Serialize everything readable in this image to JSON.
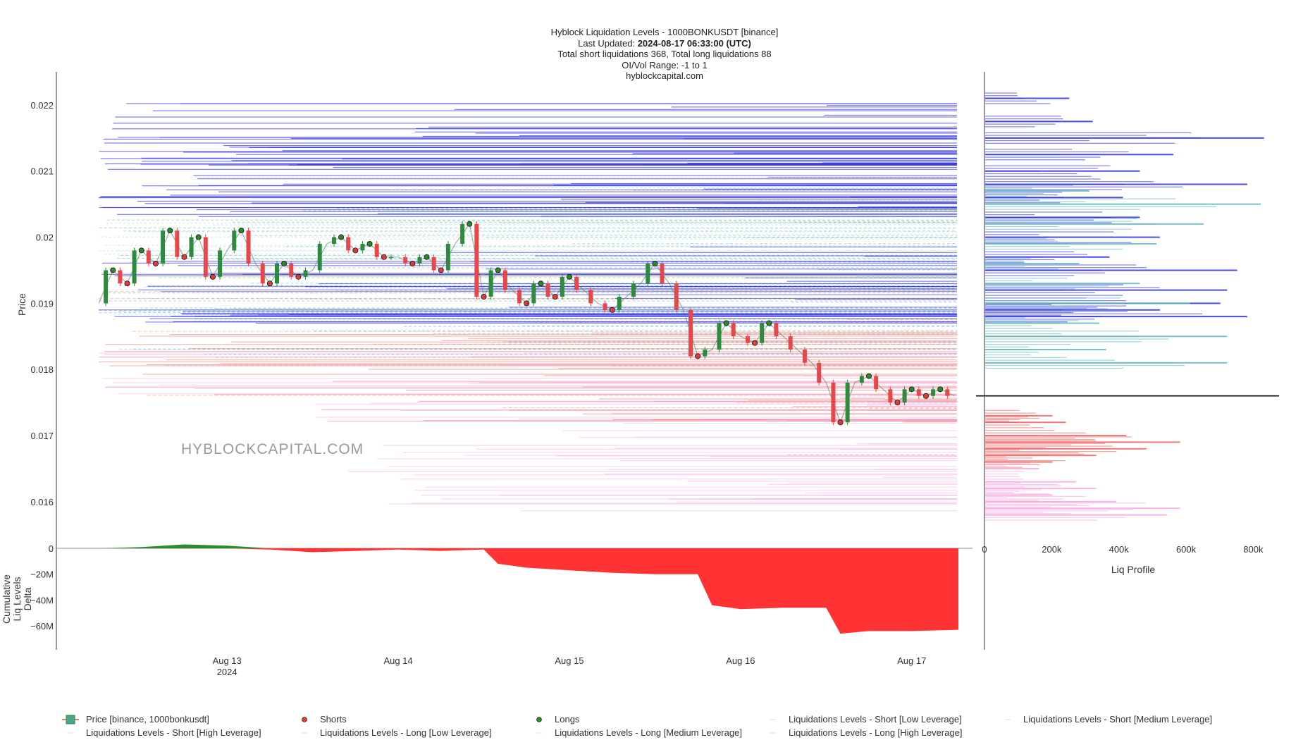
{
  "header": {
    "line1": "Hyblock Liquidation Levels - 1000BONKUSDT [binance]",
    "line2_prefix": "Last Updated: ",
    "line2_value": "2024-08-17 06:33:00 (UTC)",
    "line3": "Total short liquidations 368, Total long liquidations 88",
    "line4": "OI/Vol Range: -1 to 1",
    "line5": "hyblockcapital.com"
  },
  "watermark": "HYBLOCKCAPITAL.COM",
  "colors": {
    "price_up": "#2e8b3e",
    "price_down": "#e8474a",
    "shorts_marker": "#e03b3b",
    "longs_marker": "#2a8a2a",
    "short_low": "#a8d8d8",
    "short_medium": "#5fb8b8",
    "short_high": "#2d2de0",
    "long_low": "#f6a8e0",
    "long_medium": "#ff8c5a",
    "long_high": "#f06060",
    "delta_positive": "#2e8b2e",
    "delta_negative": "#ff3333"
  },
  "chart_data": [
    {
      "type": "line",
      "name": "price-panel",
      "ylabel": "Price",
      "ylim": [
        0.0157,
        0.0225
      ],
      "y_ticks": [
        {
          "value": 0.022,
          "label": "0.022"
        },
        {
          "value": 0.021,
          "label": "0.021"
        },
        {
          "value": 0.02,
          "label": "0.02"
        },
        {
          "value": 0.019,
          "label": "0.019"
        },
        {
          "value": 0.018,
          "label": "0.018"
        },
        {
          "value": 0.017,
          "label": "0.017"
        },
        {
          "value": 0.016,
          "label": "0.016"
        }
      ],
      "xlim": [
        "2024-08-12 06:00",
        "2024-08-17 06:33"
      ],
      "x_ticks": [
        {
          "value": "2024-08-13 00:00",
          "label": "Aug 13",
          "sublabel": "2024"
        },
        {
          "value": "2024-08-14 00:00",
          "label": "Aug 14",
          "sublabel": ""
        },
        {
          "value": "2024-08-15 00:00",
          "label": "Aug 15",
          "sublabel": ""
        },
        {
          "value": "2024-08-16 00:00",
          "label": "Aug 16",
          "sublabel": ""
        },
        {
          "value": "2024-08-17 00:00",
          "label": "Aug 17",
          "sublabel": ""
        }
      ],
      "current_price": 0.0176,
      "series": [
        {
          "name": "Price [binance, 1000bonkusdt]",
          "x": [
            "2024-08-12 06:00",
            "2024-08-12 08:00",
            "2024-08-12 10:00",
            "2024-08-12 12:00",
            "2024-08-12 14:00",
            "2024-08-12 16:00",
            "2024-08-12 18:00",
            "2024-08-12 20:00",
            "2024-08-12 22:00",
            "2024-08-13 00:00",
            "2024-08-13 02:00",
            "2024-08-13 04:00",
            "2024-08-13 06:00",
            "2024-08-13 08:00",
            "2024-08-13 10:00",
            "2024-08-13 12:00",
            "2024-08-13 14:00",
            "2024-08-13 16:00",
            "2024-08-13 18:00",
            "2024-08-13 20:00",
            "2024-08-13 22:00",
            "2024-08-14 00:00",
            "2024-08-14 02:00",
            "2024-08-14 04:00",
            "2024-08-14 06:00",
            "2024-08-14 08:00",
            "2024-08-14 10:00",
            "2024-08-14 12:00",
            "2024-08-14 14:00",
            "2024-08-14 16:00",
            "2024-08-14 18:00",
            "2024-08-14 20:00",
            "2024-08-14 22:00",
            "2024-08-15 00:00",
            "2024-08-15 02:00",
            "2024-08-15 04:00",
            "2024-08-15 06:00",
            "2024-08-15 08:00",
            "2024-08-15 10:00",
            "2024-08-15 12:00",
            "2024-08-15 14:00",
            "2024-08-15 16:00",
            "2024-08-15 18:00",
            "2024-08-15 20:00",
            "2024-08-15 22:00",
            "2024-08-16 00:00",
            "2024-08-16 02:00",
            "2024-08-16 04:00",
            "2024-08-16 06:00",
            "2024-08-16 08:00",
            "2024-08-16 10:00",
            "2024-08-16 12:00",
            "2024-08-16 14:00",
            "2024-08-16 16:00",
            "2024-08-16 18:00",
            "2024-08-16 20:00",
            "2024-08-16 22:00",
            "2024-08-17 00:00",
            "2024-08-17 02:00",
            "2024-08-17 04:00",
            "2024-08-17 06:00"
          ],
          "values": [
            0.019,
            0.0195,
            0.0193,
            0.0198,
            0.0196,
            0.0201,
            0.0197,
            0.02,
            0.0194,
            0.0198,
            0.0201,
            0.0196,
            0.0193,
            0.0196,
            0.0194,
            0.0195,
            0.0199,
            0.02,
            0.0198,
            0.0199,
            0.0197,
            0.0197,
            0.0196,
            0.0197,
            0.0195,
            0.0199,
            0.0202,
            0.0191,
            0.0195,
            0.0192,
            0.019,
            0.0193,
            0.0191,
            0.0194,
            0.0192,
            0.019,
            0.0189,
            0.0191,
            0.0193,
            0.0196,
            0.0193,
            0.0189,
            0.0182,
            0.0183,
            0.0187,
            0.0185,
            0.0184,
            0.0187,
            0.0185,
            0.0183,
            0.0181,
            0.0178,
            0.0172,
            0.0178,
            0.0179,
            0.0177,
            0.0175,
            0.0177,
            0.0176,
            0.0177,
            0.0176
          ]
        }
      ]
    },
    {
      "type": "bar",
      "name": "liq-profile",
      "xlabel": "Liq Profile",
      "xlim": [
        0,
        860000
      ],
      "x_ticks": [
        {
          "value": 0,
          "label": "0"
        },
        {
          "value": 200000,
          "label": "200k"
        },
        {
          "value": 400000,
          "label": "400k"
        },
        {
          "value": 600000,
          "label": "600k"
        },
        {
          "value": 800000,
          "label": "800k"
        }
      ],
      "series": [
        {
          "name": "Liquidations Levels - Short [High Leverage]",
          "price": [
            0.0221,
            0.02175,
            0.0215,
            0.02125,
            0.021,
            0.0208,
            0.0206,
            0.0203,
            0.02,
            0.0197,
            0.0195,
            0.0192,
            0.019,
            0.0189,
            0.0188
          ],
          "values": [
            250000,
            320000,
            830000,
            560000,
            460000,
            780000,
            410000,
            460000,
            520000,
            370000,
            750000,
            720000,
            700000,
            520000,
            780000
          ]
        },
        {
          "name": "Liquidations Levels - Short [Medium Leverage]",
          "price": [
            0.0207,
            0.0205,
            0.0202,
            0.0199,
            0.0196,
            0.0193,
            0.019,
            0.0187,
            0.0185,
            0.0183,
            0.0181
          ],
          "values": [
            310000,
            820000,
            650000,
            510000,
            280000,
            460000,
            610000,
            340000,
            720000,
            360000,
            720000
          ]
        },
        {
          "name": "Liquidations Levels - Long [High Leverage]",
          "price": [
            0.0173,
            0.0172,
            0.017,
            0.0169,
            0.0168,
            0.0167,
            0.0166
          ],
          "values": [
            200000,
            240000,
            420000,
            580000,
            480000,
            330000,
            200000
          ]
        },
        {
          "name": "Liquidations Levels - Long [Low Leverage]",
          "price": [
            0.0165,
            0.0163,
            0.0162,
            0.0161,
            0.016,
            0.0159,
            0.0158
          ],
          "values": [
            160000,
            270000,
            330000,
            200000,
            390000,
            580000,
            540000
          ]
        }
      ]
    },
    {
      "type": "area",
      "name": "cumulative-liq-delta",
      "ylabel": "Cumulative Liq Levels Delta",
      "ylim": [
        -72000000,
        4000000
      ],
      "y_ticks": [
        {
          "value": 0,
          "label": "0"
        },
        {
          "value": -20000000,
          "label": "−20M"
        },
        {
          "value": -40000000,
          "label": "−40M"
        },
        {
          "value": -60000000,
          "label": "−60M"
        }
      ],
      "series": [
        {
          "name": "Cumulative Liq Levels Delta",
          "x": [
            "2024-08-12 06:00",
            "2024-08-12 12:00",
            "2024-08-12 18:00",
            "2024-08-13 00:00",
            "2024-08-13 06:00",
            "2024-08-13 12:00",
            "2024-08-13 18:00",
            "2024-08-14 00:00",
            "2024-08-14 06:00",
            "2024-08-14 12:00",
            "2024-08-14 14:00",
            "2024-08-14 18:00",
            "2024-08-15 00:00",
            "2024-08-15 06:00",
            "2024-08-15 12:00",
            "2024-08-15 18:00",
            "2024-08-15 20:00",
            "2024-08-16 00:00",
            "2024-08-16 06:00",
            "2024-08-16 12:00",
            "2024-08-16 14:00",
            "2024-08-16 18:00",
            "2024-08-17 00:00",
            "2024-08-17 06:33"
          ],
          "values": [
            0,
            1000000,
            3000000,
            2000000,
            -1000000,
            -3000000,
            -2000000,
            -1000000,
            -2000000,
            -1000000,
            -12000000,
            -15000000,
            -17000000,
            -19000000,
            -20000000,
            -20000000,
            -44000000,
            -47000000,
            -46000000,
            -46000000,
            -66000000,
            -64000000,
            -64000000,
            -63000000
          ]
        }
      ]
    }
  ],
  "legend": {
    "items": [
      {
        "label": "Price [binance, 1000bonkusdt]",
        "kind": "candle"
      },
      {
        "label": "Shorts",
        "kind": "dot-red"
      },
      {
        "label": "Longs",
        "kind": "dot-green"
      },
      {
        "label": "Liquidations Levels - Short [Low Leverage]",
        "kind": "faint"
      },
      {
        "label": "Liquidations Levels - Short [Medium Leverage]",
        "kind": "faint"
      },
      {
        "label": "Liquidations Levels - Short [High Leverage]",
        "kind": "faint"
      },
      {
        "label": "Liquidations Levels - Long [Low Leverage]",
        "kind": "faint"
      },
      {
        "label": "Liquidations Levels - Long [Medium Leverage]",
        "kind": "faint"
      },
      {
        "label": "Liquidations Levels - Long [High Leverage]",
        "kind": "faint"
      }
    ]
  }
}
